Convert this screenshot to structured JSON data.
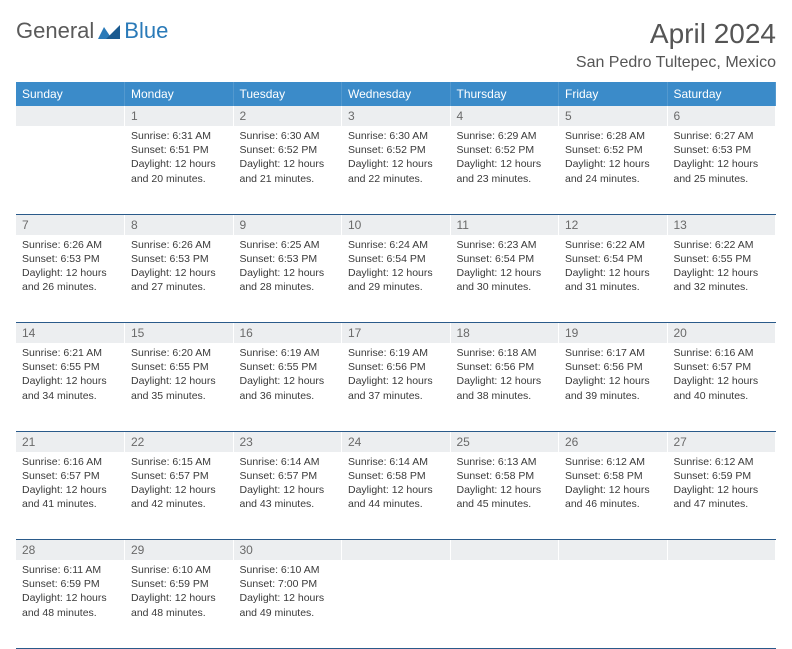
{
  "logo": {
    "text1": "General",
    "text2": "Blue"
  },
  "title": "April 2024",
  "location": "San Pedro Tultepec, Mexico",
  "colors": {
    "header_bg": "#3b8bc9",
    "header_text": "#ffffff",
    "daynum_bg": "#eceef0",
    "daynum_text": "#6a6a6a",
    "body_text": "#3a3a3a",
    "rule": "#2a5a8a",
    "logo_gray": "#5a5a5a",
    "logo_blue": "#2a7ab8"
  },
  "typography": {
    "title_fontsize": 28,
    "location_fontsize": 16,
    "dayheader_fontsize": 12,
    "cell_fontsize": 10.5
  },
  "day_headers": [
    "Sunday",
    "Monday",
    "Tuesday",
    "Wednesday",
    "Thursday",
    "Friday",
    "Saturday"
  ],
  "weeks": [
    [
      null,
      {
        "n": "1",
        "sr": "Sunrise: 6:31 AM",
        "ss": "Sunset: 6:51 PM",
        "dl": "Daylight: 12 hours and 20 minutes."
      },
      {
        "n": "2",
        "sr": "Sunrise: 6:30 AM",
        "ss": "Sunset: 6:52 PM",
        "dl": "Daylight: 12 hours and 21 minutes."
      },
      {
        "n": "3",
        "sr": "Sunrise: 6:30 AM",
        "ss": "Sunset: 6:52 PM",
        "dl": "Daylight: 12 hours and 22 minutes."
      },
      {
        "n": "4",
        "sr": "Sunrise: 6:29 AM",
        "ss": "Sunset: 6:52 PM",
        "dl": "Daylight: 12 hours and 23 minutes."
      },
      {
        "n": "5",
        "sr": "Sunrise: 6:28 AM",
        "ss": "Sunset: 6:52 PM",
        "dl": "Daylight: 12 hours and 24 minutes."
      },
      {
        "n": "6",
        "sr": "Sunrise: 6:27 AM",
        "ss": "Sunset: 6:53 PM",
        "dl": "Daylight: 12 hours and 25 minutes."
      }
    ],
    [
      {
        "n": "7",
        "sr": "Sunrise: 6:26 AM",
        "ss": "Sunset: 6:53 PM",
        "dl": "Daylight: 12 hours and 26 minutes."
      },
      {
        "n": "8",
        "sr": "Sunrise: 6:26 AM",
        "ss": "Sunset: 6:53 PM",
        "dl": "Daylight: 12 hours and 27 minutes."
      },
      {
        "n": "9",
        "sr": "Sunrise: 6:25 AM",
        "ss": "Sunset: 6:53 PM",
        "dl": "Daylight: 12 hours and 28 minutes."
      },
      {
        "n": "10",
        "sr": "Sunrise: 6:24 AM",
        "ss": "Sunset: 6:54 PM",
        "dl": "Daylight: 12 hours and 29 minutes."
      },
      {
        "n": "11",
        "sr": "Sunrise: 6:23 AM",
        "ss": "Sunset: 6:54 PM",
        "dl": "Daylight: 12 hours and 30 minutes."
      },
      {
        "n": "12",
        "sr": "Sunrise: 6:22 AM",
        "ss": "Sunset: 6:54 PM",
        "dl": "Daylight: 12 hours and 31 minutes."
      },
      {
        "n": "13",
        "sr": "Sunrise: 6:22 AM",
        "ss": "Sunset: 6:55 PM",
        "dl": "Daylight: 12 hours and 32 minutes."
      }
    ],
    [
      {
        "n": "14",
        "sr": "Sunrise: 6:21 AM",
        "ss": "Sunset: 6:55 PM",
        "dl": "Daylight: 12 hours and 34 minutes."
      },
      {
        "n": "15",
        "sr": "Sunrise: 6:20 AM",
        "ss": "Sunset: 6:55 PM",
        "dl": "Daylight: 12 hours and 35 minutes."
      },
      {
        "n": "16",
        "sr": "Sunrise: 6:19 AM",
        "ss": "Sunset: 6:55 PM",
        "dl": "Daylight: 12 hours and 36 minutes."
      },
      {
        "n": "17",
        "sr": "Sunrise: 6:19 AM",
        "ss": "Sunset: 6:56 PM",
        "dl": "Daylight: 12 hours and 37 minutes."
      },
      {
        "n": "18",
        "sr": "Sunrise: 6:18 AM",
        "ss": "Sunset: 6:56 PM",
        "dl": "Daylight: 12 hours and 38 minutes."
      },
      {
        "n": "19",
        "sr": "Sunrise: 6:17 AM",
        "ss": "Sunset: 6:56 PM",
        "dl": "Daylight: 12 hours and 39 minutes."
      },
      {
        "n": "20",
        "sr": "Sunrise: 6:16 AM",
        "ss": "Sunset: 6:57 PM",
        "dl": "Daylight: 12 hours and 40 minutes."
      }
    ],
    [
      {
        "n": "21",
        "sr": "Sunrise: 6:16 AM",
        "ss": "Sunset: 6:57 PM",
        "dl": "Daylight: 12 hours and 41 minutes."
      },
      {
        "n": "22",
        "sr": "Sunrise: 6:15 AM",
        "ss": "Sunset: 6:57 PM",
        "dl": "Daylight: 12 hours and 42 minutes."
      },
      {
        "n": "23",
        "sr": "Sunrise: 6:14 AM",
        "ss": "Sunset: 6:57 PM",
        "dl": "Daylight: 12 hours and 43 minutes."
      },
      {
        "n": "24",
        "sr": "Sunrise: 6:14 AM",
        "ss": "Sunset: 6:58 PM",
        "dl": "Daylight: 12 hours and 44 minutes."
      },
      {
        "n": "25",
        "sr": "Sunrise: 6:13 AM",
        "ss": "Sunset: 6:58 PM",
        "dl": "Daylight: 12 hours and 45 minutes."
      },
      {
        "n": "26",
        "sr": "Sunrise: 6:12 AM",
        "ss": "Sunset: 6:58 PM",
        "dl": "Daylight: 12 hours and 46 minutes."
      },
      {
        "n": "27",
        "sr": "Sunrise: 6:12 AM",
        "ss": "Sunset: 6:59 PM",
        "dl": "Daylight: 12 hours and 47 minutes."
      }
    ],
    [
      {
        "n": "28",
        "sr": "Sunrise: 6:11 AM",
        "ss": "Sunset: 6:59 PM",
        "dl": "Daylight: 12 hours and 48 minutes."
      },
      {
        "n": "29",
        "sr": "Sunrise: 6:10 AM",
        "ss": "Sunset: 6:59 PM",
        "dl": "Daylight: 12 hours and 48 minutes."
      },
      {
        "n": "30",
        "sr": "Sunrise: 6:10 AM",
        "ss": "Sunset: 7:00 PM",
        "dl": "Daylight: 12 hours and 49 minutes."
      },
      null,
      null,
      null,
      null
    ]
  ]
}
